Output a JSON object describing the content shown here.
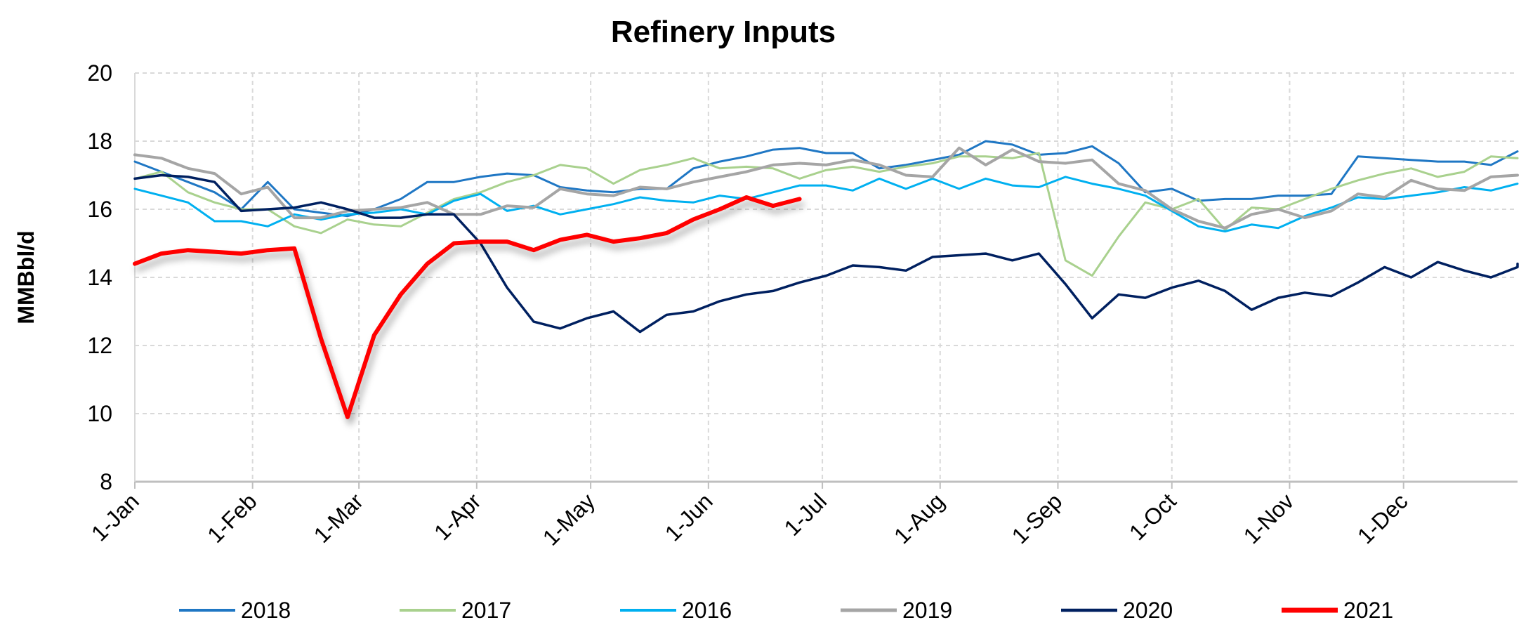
{
  "chart_data": {
    "type": "line",
    "title": "Refinery Inputs",
    "xlabel": "",
    "ylabel": "MMBbl/d",
    "ylim": [
      8,
      20
    ],
    "yticks": [
      8,
      10,
      12,
      14,
      16,
      18,
      20
    ],
    "xlim": [
      1,
      365
    ],
    "xticks": [
      {
        "label": "1-Jan",
        "day": 1
      },
      {
        "label": "1-Feb",
        "day": 32
      },
      {
        "label": "1-Mar",
        "day": 60
      },
      {
        "label": "1-Apr",
        "day": 91
      },
      {
        "label": "1-May",
        "day": 121
      },
      {
        "label": "1-Jun",
        "day": 152
      },
      {
        "label": "1-Jul",
        "day": 182
      },
      {
        "label": "1-Aug",
        "day": 213
      },
      {
        "label": "1-Sep",
        "day": 244
      },
      {
        "label": "1-Oct",
        "day": 274
      },
      {
        "label": "1-Nov",
        "day": 305
      },
      {
        "label": "1-Dec",
        "day": 335
      }
    ],
    "grid": true,
    "legend_position": "bottom",
    "x_step_days": 7,
    "series": [
      {
        "name": "2018",
        "color": "#1f77c4",
        "width": 3,
        "values": [
          17.4,
          17.1,
          16.8,
          16.5,
          16.0,
          16.8,
          16.0,
          15.9,
          15.8,
          16.0,
          16.3,
          16.8,
          16.8,
          16.95,
          17.05,
          17.0,
          16.65,
          16.55,
          16.5,
          16.6,
          16.6,
          17.2,
          17.4,
          17.55,
          17.75,
          17.8,
          17.65,
          17.65,
          17.2,
          17.3,
          17.45,
          17.6,
          18.0,
          17.9,
          17.6,
          17.65,
          17.85,
          17.35,
          16.5,
          16.6,
          16.25,
          16.3,
          16.3,
          16.4,
          16.4,
          16.45,
          17.55,
          17.5,
          17.45,
          17.4,
          17.4,
          17.3,
          17.7
        ]
      },
      {
        "name": "2017",
        "color": "#a9d18e",
        "width": 3,
        "values": [
          16.9,
          17.1,
          16.5,
          16.2,
          16.0,
          16.0,
          15.5,
          15.3,
          15.7,
          15.55,
          15.5,
          15.9,
          16.3,
          16.5,
          16.8,
          17.0,
          17.3,
          17.2,
          16.75,
          17.15,
          17.3,
          17.5,
          17.2,
          17.25,
          17.2,
          16.9,
          17.15,
          17.25,
          17.1,
          17.25,
          17.35,
          17.55,
          17.55,
          17.5,
          17.65,
          14.5,
          14.05,
          15.2,
          16.2,
          16.0,
          16.3,
          15.4,
          16.05,
          16.0,
          16.3,
          16.6,
          16.85,
          17.05,
          17.2,
          16.95,
          17.1,
          17.55,
          17.5
        ]
      },
      {
        "name": "2016",
        "color": "#00b0f0",
        "width": 3,
        "values": [
          16.6,
          16.4,
          16.2,
          15.65,
          15.65,
          15.5,
          15.85,
          15.7,
          15.85,
          15.9,
          16.0,
          15.85,
          16.25,
          16.45,
          15.95,
          16.1,
          15.85,
          16.0,
          16.15,
          16.35,
          16.25,
          16.2,
          16.4,
          16.3,
          16.5,
          16.7,
          16.7,
          16.55,
          16.9,
          16.6,
          16.9,
          16.6,
          16.9,
          16.7,
          16.65,
          16.95,
          16.75,
          16.6,
          16.4,
          15.95,
          15.5,
          15.35,
          15.55,
          15.45,
          15.8,
          16.05,
          16.35,
          16.3,
          16.4,
          16.5,
          16.65,
          16.55,
          16.75
        ]
      },
      {
        "name": "2019",
        "color": "#a5a5a5",
        "width": 4,
        "values": [
          17.6,
          17.5,
          17.2,
          17.05,
          16.45,
          16.65,
          15.75,
          15.75,
          15.95,
          16.0,
          16.05,
          16.2,
          15.85,
          15.85,
          16.1,
          16.05,
          16.6,
          16.45,
          16.4,
          16.65,
          16.6,
          16.8,
          16.95,
          17.1,
          17.3,
          17.35,
          17.3,
          17.45,
          17.3,
          17.0,
          16.95,
          17.8,
          17.3,
          17.75,
          17.4,
          17.35,
          17.45,
          16.75,
          16.55,
          16.0,
          15.65,
          15.45,
          15.85,
          16.0,
          15.75,
          15.95,
          16.45,
          16.35,
          16.85,
          16.6,
          16.55,
          16.95,
          17.0
        ]
      },
      {
        "name": "2020",
        "color": "#002060",
        "width": 3.5,
        "values": [
          16.9,
          17.0,
          16.95,
          16.8,
          15.95,
          16.0,
          16.05,
          16.2,
          16.0,
          15.75,
          15.75,
          15.85,
          15.85,
          15.0,
          13.7,
          12.7,
          12.5,
          12.8,
          13.0,
          12.4,
          12.9,
          13.0,
          13.3,
          13.5,
          13.6,
          13.85,
          14.05,
          14.35,
          14.3,
          14.2,
          14.6,
          14.65,
          14.7,
          14.5,
          14.7,
          13.8,
          12.8,
          13.5,
          13.4,
          13.7,
          13.9,
          13.6,
          13.05,
          13.4,
          13.55,
          13.45,
          13.85,
          14.3,
          14.0,
          14.45,
          14.2,
          14.0,
          14.3,
          14.4
        ]
      },
      {
        "name": "2021",
        "color": "#ff0000",
        "width": 6,
        "values": [
          14.4,
          14.7,
          14.8,
          14.75,
          14.7,
          14.8,
          14.85,
          12.2,
          9.9,
          12.3,
          13.5,
          14.4,
          15.0,
          15.05,
          15.05,
          14.8,
          15.1,
          15.25,
          15.05,
          15.15,
          15.3,
          15.7,
          16.0,
          16.35,
          16.1,
          16.3
        ]
      }
    ]
  }
}
